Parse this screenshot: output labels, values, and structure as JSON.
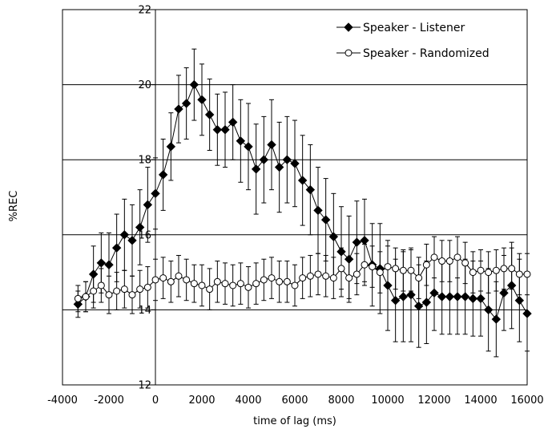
{
  "chart_data": {
    "type": "line",
    "title": "",
    "xlabel": "time of lag (ms)",
    "ylabel": "%REC",
    "xlim": [
      -4000,
      16000
    ],
    "ylim": [
      12,
      22
    ],
    "x_ticks": [
      "-4000",
      "-2000",
      "0",
      "2000",
      "4000",
      "6000",
      "8000",
      "10000",
      "12000",
      "14000",
      "16000"
    ],
    "y_ticks": [
      "12",
      "14",
      "16",
      "18",
      "20",
      "22"
    ],
    "x_tick_values": [
      -4000,
      -2000,
      0,
      2000,
      4000,
      6000,
      8000,
      10000,
      12000,
      14000,
      16000
    ],
    "y_tick_values": [
      12,
      14,
      16,
      18,
      20,
      22
    ],
    "horizontal_gridlines": [
      14,
      16,
      18,
      20
    ],
    "legend_position": "top-right",
    "x": [
      -3333,
      -3000,
      -2667,
      -2333,
      -2000,
      -1667,
      -1333,
      -1000,
      -667,
      -333,
      0,
      333,
      667,
      1000,
      1333,
      1667,
      2000,
      2333,
      2667,
      3000,
      3333,
      3667,
      4000,
      4333,
      4667,
      5000,
      5333,
      5667,
      6000,
      6333,
      6667,
      7000,
      7333,
      7667,
      8000,
      8333,
      8667,
      9000,
      9333,
      9667,
      10000,
      10333,
      10667,
      11000,
      11333,
      11667,
      12000,
      12333,
      12667,
      13000,
      13333,
      13667,
      14000,
      14333,
      14667,
      15000,
      15333,
      15667,
      16000
    ],
    "series": [
      {
        "name": "Speaker - Listener",
        "marker": "filled-diamond",
        "color": "#000000",
        "values": [
          14.15,
          14.35,
          14.95,
          15.25,
          15.2,
          15.65,
          16.0,
          15.85,
          16.2,
          16.8,
          17.1,
          17.6,
          18.35,
          19.35,
          19.5,
          20.0,
          19.6,
          19.2,
          18.8,
          18.8,
          19.0,
          18.5,
          18.35,
          17.75,
          18.0,
          18.4,
          17.8,
          18.0,
          17.9,
          17.45,
          17.2,
          16.65,
          16.4,
          15.95,
          15.55,
          15.35,
          15.8,
          15.85,
          15.2,
          15.1,
          14.65,
          14.25,
          14.35,
          14.4,
          14.1,
          14.2,
          14.45,
          14.35,
          14.35,
          14.35,
          14.35,
          14.3,
          14.3,
          14.0,
          13.75,
          14.45,
          14.65,
          14.25,
          13.9
        ],
        "errors": [
          0.35,
          0.4,
          0.75,
          0.8,
          0.85,
          0.9,
          0.95,
          0.95,
          1.0,
          1.0,
          0.95,
          0.95,
          0.9,
          0.9,
          0.95,
          0.95,
          0.95,
          0.95,
          0.95,
          1.0,
          1.0,
          1.1,
          1.15,
          1.2,
          1.15,
          1.2,
          1.2,
          1.15,
          1.15,
          1.2,
          1.2,
          1.15,
          1.1,
          1.15,
          1.2,
          1.15,
          1.1,
          1.1,
          1.1,
          1.2,
          1.2,
          1.1,
          1.2,
          1.25,
          1.1,
          1.1,
          1.0,
          1.0,
          1.0,
          1.0,
          1.0,
          1.0,
          1.0,
          1.1,
          1.0,
          1.0,
          1.15,
          1.1,
          1.0
        ]
      },
      {
        "name": "Speaker - Randomized",
        "marker": "open-circle",
        "color": "#000000",
        "values": [
          14.3,
          14.35,
          14.5,
          14.65,
          14.4,
          14.5,
          14.55,
          14.4,
          14.55,
          14.6,
          14.8,
          14.85,
          14.75,
          14.9,
          14.8,
          14.7,
          14.65,
          14.55,
          14.75,
          14.7,
          14.65,
          14.7,
          14.6,
          14.7,
          14.8,
          14.85,
          14.75,
          14.75,
          14.65,
          14.85,
          14.9,
          14.95,
          14.9,
          14.85,
          15.1,
          14.85,
          14.95,
          15.2,
          15.15,
          15.0,
          15.15,
          15.1,
          15.05,
          15.05,
          14.85,
          15.2,
          15.4,
          15.3,
          15.3,
          15.4,
          15.25,
          15.0,
          15.05,
          15.0,
          15.05,
          15.1,
          15.1,
          14.95,
          14.95
        ],
        "errors": [
          0.35,
          0.4,
          0.45,
          0.45,
          0.5,
          0.5,
          0.5,
          0.5,
          0.5,
          0.55,
          0.55,
          0.55,
          0.55,
          0.55,
          0.55,
          0.5,
          0.55,
          0.55,
          0.55,
          0.55,
          0.55,
          0.55,
          0.55,
          0.55,
          0.55,
          0.55,
          0.55,
          0.55,
          0.55,
          0.55,
          0.55,
          0.55,
          0.55,
          0.55,
          0.55,
          0.55,
          0.55,
          0.55,
          0.55,
          0.55,
          0.55,
          0.55,
          0.55,
          0.55,
          0.55,
          0.55,
          0.55,
          0.55,
          0.55,
          0.55,
          0.55,
          0.55,
          0.55,
          0.55,
          0.55,
          0.55,
          0.55,
          0.55,
          0.55
        ]
      }
    ]
  }
}
